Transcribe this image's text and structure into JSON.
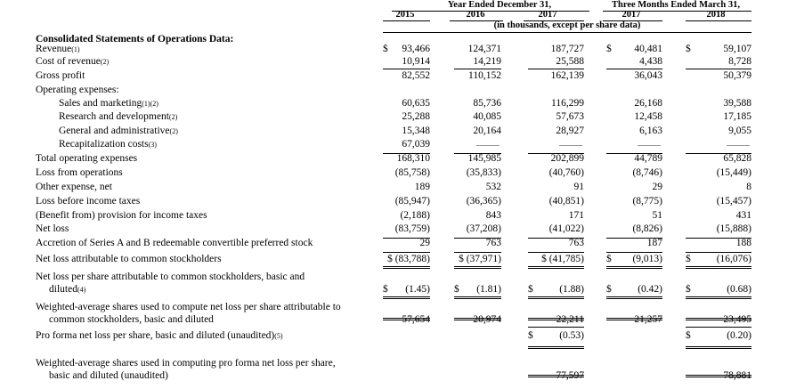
{
  "header": {
    "group_year": "Year Ended December 31,",
    "group_quarter": "Three Months Ended March 31,",
    "col_years": [
      "2015",
      "2016",
      "2017",
      "2017",
      "2018"
    ],
    "subtitle": "(in thousands, except per share data)"
  },
  "section_title": "Consolidated Statements of Operations Data:",
  "rows": [
    {
      "label": "Revenue",
      "note": "(1)",
      "dollar": [
        true,
        false,
        false,
        true,
        true
      ],
      "values": [
        "93,466",
        "124,371",
        "187,727",
        "40,481",
        "59,107"
      ]
    },
    {
      "label": "Cost of revenue",
      "note": "(2)",
      "values": [
        "10,914",
        "14,219",
        "25,588",
        "4,438",
        "8,728"
      ]
    },
    {
      "label": "Gross profit",
      "note": "",
      "values": [
        "82,552",
        "110,152",
        "162,139",
        "36,043",
        "50,379"
      ]
    },
    {
      "label": "Operating expenses:",
      "note": "",
      "values": [
        "",
        "",
        "",
        "",
        ""
      ]
    },
    {
      "label": "Sales and marketing",
      "note": "(1)(2)",
      "values": [
        "60,635",
        "85,736",
        "116,299",
        "26,168",
        "39,588"
      ]
    },
    {
      "label": "Research and development",
      "note": "(2)",
      "values": [
        "25,288",
        "40,085",
        "57,673",
        "12,458",
        "17,185"
      ]
    },
    {
      "label": "General and administrative",
      "note": "(2)",
      "values": [
        "15,348",
        "20,164",
        "28,927",
        "6,163",
        "9,055"
      ]
    },
    {
      "label": "Recapitalization costs",
      "note": "(3)",
      "values": [
        "67,039",
        "—",
        "—",
        "—",
        "—"
      ]
    },
    {
      "label": "Total operating expenses",
      "note": "",
      "values": [
        "168,310",
        "145,985",
        "202,899",
        "44,789",
        "65,828"
      ]
    },
    {
      "label": "Loss from operations",
      "note": "",
      "values": [
        "(85,758)",
        "(35,833)",
        "(40,760)",
        "(8,746)",
        "(15,449)"
      ]
    },
    {
      "label": "Other expense, net",
      "note": "",
      "values": [
        "189",
        "532",
        "91",
        "29",
        "8"
      ]
    },
    {
      "label": "Loss before income taxes",
      "note": "",
      "values": [
        "(85,947)",
        "(36,365)",
        "(40,851)",
        "(8,775)",
        "(15,457)"
      ]
    },
    {
      "label": "(Benefit from) provision for income taxes",
      "note": "",
      "values": [
        "(2,188)",
        "843",
        "171",
        "51",
        "431"
      ]
    },
    {
      "label": "Net loss",
      "note": "",
      "values": [
        "(83,759)",
        "(37,208)",
        "(41,022)",
        "(8,826)",
        "(15,888)"
      ]
    },
    {
      "label": "Accretion of Series A and B redeemable convertible preferred stock",
      "note": "",
      "values": [
        "29",
        "763",
        "763",
        "187",
        "188"
      ]
    },
    {
      "label": "Net loss attributable to common stockholders",
      "note": "",
      "values": [
        "$ (83,788)",
        "$ (37,971)",
        "$ (41,785)",
        "(9,013)",
        "(16,076)"
      ]
    },
    {
      "label": "Net loss per share attributable to common stockholders, basic and",
      "label2": "diluted",
      "note": "(4)",
      "values": [
        "(1.45)",
        "(1.81)",
        "(1.88)",
        "(0.42)",
        "(0.68)"
      ]
    },
    {
      "label": "Weighted-average shares used to compute net loss per share attributable to",
      "label2": "common stockholders, basic and diluted",
      "note": "",
      "values": [
        "57,654",
        "20,974",
        "22,211",
        "21,257",
        "23,495"
      ]
    },
    {
      "label": "Pro forma net loss per share, basic and diluted (unaudited)",
      "note": "(5)",
      "values": [
        "",
        "",
        "(0.53)",
        "",
        "(0.20)"
      ]
    },
    {
      "label": "Weighted-average shares used in computing pro forma net loss per share,",
      "label2": "basic and diluted (unaudited)",
      "note": "",
      "values": [
        "",
        "",
        "77,597",
        "",
        "78,881"
      ]
    }
  ],
  "currency_symbol": "$",
  "colors": {
    "dash": "#5aa8d8"
  }
}
